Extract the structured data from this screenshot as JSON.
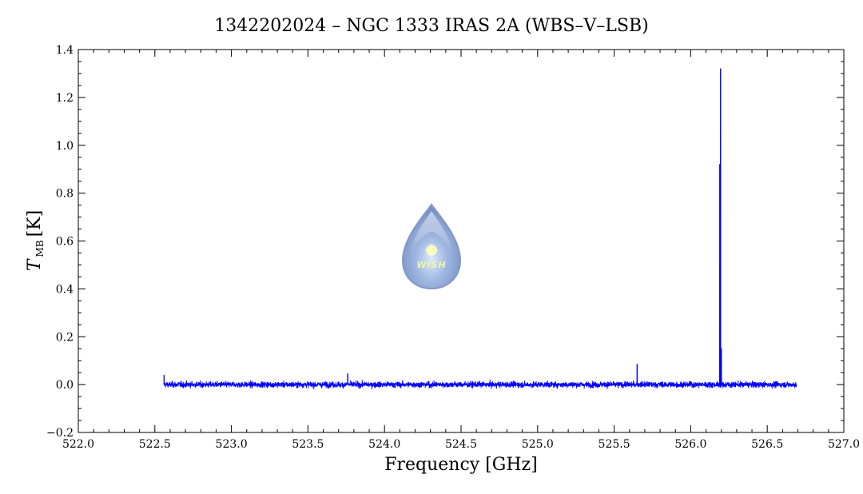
{
  "chart_data": {
    "type": "line",
    "title": "1342202024 – NGC 1333 IRAS 2A (WBS–V–LSB)",
    "xlabel": "Frequency [GHz]",
    "ylabel_main": "T",
    "ylabel_sub": "MB",
    "ylabel_unit": "[K]",
    "xlim": [
      522.0,
      527.0
    ],
    "ylim": [
      -0.2,
      1.4
    ],
    "x_ticks": [
      522.0,
      522.5,
      523.0,
      523.5,
      524.0,
      524.5,
      525.0,
      525.5,
      526.0,
      526.5,
      527.0
    ],
    "x_tick_labels": [
      "522.0",
      "522.5",
      "523.0",
      "523.5",
      "524.0",
      "524.5",
      "525.0",
      "525.5",
      "526.0",
      "526.5",
      "527.0"
    ],
    "y_ticks": [
      -0.2,
      0.0,
      0.2,
      0.4,
      0.6,
      0.8,
      1.0,
      1.2,
      1.4
    ],
    "y_tick_labels": [
      "−0.2",
      "0.0",
      "0.2",
      "0.4",
      "0.6",
      "0.8",
      "1.0",
      "1.2",
      "1.4"
    ],
    "grid": false,
    "series": [
      {
        "color": "#0000ff",
        "x_range": [
          522.56,
          526.69
        ],
        "baseline": 0.0,
        "noise_rms": 0.009,
        "features": [
          {
            "x": 522.56,
            "y": 0.04
          },
          {
            "x": 523.76,
            "y": 0.045
          },
          {
            "x": 525.65,
            "y": 0.085
          },
          {
            "x": 526.19,
            "y": 0.92
          },
          {
            "x": 526.195,
            "y": 1.32
          },
          {
            "x": 526.2,
            "y": 0.15
          }
        ]
      }
    ],
    "watermark": {
      "text": "WISH",
      "position": "center"
    }
  }
}
